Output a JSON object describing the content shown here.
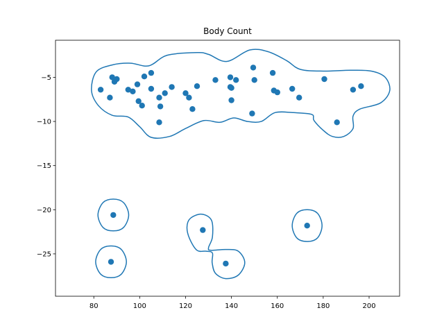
{
  "chart_data": {
    "type": "scatter",
    "title": "Body Count",
    "xlabel": "",
    "ylabel": "",
    "xlim": [
      63.3,
      213.3
    ],
    "ylim": [
      -29.8,
      -0.8
    ],
    "xticks": [
      80,
      100,
      120,
      140,
      160,
      180,
      200
    ],
    "yticks": [
      -5,
      -10,
      -15,
      -20,
      -25
    ],
    "grid": false,
    "colors": {
      "marker": "#1f77b4",
      "contour": "#1f77b4"
    },
    "points": [
      {
        "x": 83.0,
        "y": -6.4
      },
      {
        "x": 87.0,
        "y": -7.3
      },
      {
        "x": 88.0,
        "y": -5.0
      },
      {
        "x": 89.0,
        "y": -5.5
      },
      {
        "x": 90.0,
        "y": -5.2
      },
      {
        "x": 95.0,
        "y": -6.4
      },
      {
        "x": 97.0,
        "y": -6.6
      },
      {
        "x": 99.0,
        "y": -5.8
      },
      {
        "x": 99.5,
        "y": -7.7
      },
      {
        "x": 101.0,
        "y": -8.2
      },
      {
        "x": 102.0,
        "y": -4.9
      },
      {
        "x": 105.0,
        "y": -4.5
      },
      {
        "x": 105.0,
        "y": -6.3
      },
      {
        "x": 108.5,
        "y": -7.3
      },
      {
        "x": 108.5,
        "y": -10.1
      },
      {
        "x": 109.0,
        "y": -8.3
      },
      {
        "x": 111.0,
        "y": -6.8
      },
      {
        "x": 114.0,
        "y": -6.1
      },
      {
        "x": 120.0,
        "y": -6.8
      },
      {
        "x": 121.5,
        "y": -7.3
      },
      {
        "x": 123.0,
        "y": -8.6
      },
      {
        "x": 125.0,
        "y": -6.0
      },
      {
        "x": 133.0,
        "y": -5.3
      },
      {
        "x": 139.5,
        "y": -5.0
      },
      {
        "x": 139.5,
        "y": -6.1
      },
      {
        "x": 140.0,
        "y": -6.2
      },
      {
        "x": 140.0,
        "y": -7.6
      },
      {
        "x": 142.0,
        "y": -5.3
      },
      {
        "x": 149.0,
        "y": -9.1
      },
      {
        "x": 149.5,
        "y": -3.9
      },
      {
        "x": 150.0,
        "y": -5.3
      },
      {
        "x": 158.0,
        "y": -4.5
      },
      {
        "x": 158.5,
        "y": -6.5
      },
      {
        "x": 160.0,
        "y": -6.7
      },
      {
        "x": 166.5,
        "y": -6.3
      },
      {
        "x": 169.5,
        "y": -7.3
      },
      {
        "x": 180.5,
        "y": -5.2
      },
      {
        "x": 186.0,
        "y": -10.1
      },
      {
        "x": 193.0,
        "y": -6.4
      },
      {
        "x": 196.5,
        "y": -6.0
      },
      {
        "x": 88.5,
        "y": -20.6
      },
      {
        "x": 87.5,
        "y": -25.9
      },
      {
        "x": 127.5,
        "y": -22.3
      },
      {
        "x": 137.5,
        "y": -26.1
      },
      {
        "x": 173.0,
        "y": -21.8
      }
    ],
    "contours": [
      [
        [
          104,
          -3.7
        ],
        [
          112,
          -2.5
        ],
        [
          125,
          -2.2
        ],
        [
          130,
          -2.4
        ],
        [
          138,
          -3.2
        ],
        [
          148,
          -1.9
        ],
        [
          156,
          -2.1
        ],
        [
          164,
          -3.1
        ],
        [
          170,
          -4.1
        ],
        [
          180,
          -4.3
        ],
        [
          192,
          -4.2
        ],
        [
          201,
          -4.3
        ],
        [
          207,
          -5.0
        ],
        [
          209,
          -6.5
        ],
        [
          205,
          -7.9
        ],
        [
          196,
          -8.6
        ],
        [
          193,
          -9.4
        ],
        [
          193,
          -10.8
        ],
        [
          189,
          -11.7
        ],
        [
          184,
          -11.7
        ],
        [
          180,
          -11.0
        ],
        [
          176,
          -9.9
        ],
        [
          175,
          -9.2
        ],
        [
          167,
          -9.0
        ],
        [
          159,
          -9.0
        ],
        [
          153,
          -10.0
        ],
        [
          147,
          -10.0
        ],
        [
          141,
          -9.6
        ],
        [
          135,
          -10.1
        ],
        [
          128,
          -9.9
        ],
        [
          120,
          -10.8
        ],
        [
          113,
          -11.7
        ],
        [
          105,
          -11.8
        ],
        [
          100,
          -10.6
        ],
        [
          95,
          -9.5
        ],
        [
          88,
          -9.3
        ],
        [
          82,
          -8.2
        ],
        [
          79,
          -6.5
        ],
        [
          81,
          -4.4
        ],
        [
          88,
          -3.6
        ],
        [
          96,
          -3.4
        ],
        [
          104,
          -3.7
        ]
      ],
      [
        [
          88.5,
          -18.8
        ],
        [
          93,
          -19.2
        ],
        [
          95.2,
          -20.6
        ],
        [
          93,
          -22.0
        ],
        [
          88.5,
          -22.4
        ],
        [
          84,
          -22.0
        ],
        [
          81.8,
          -20.6
        ],
        [
          84,
          -19.2
        ],
        [
          88.5,
          -18.8
        ]
      ],
      [
        [
          87.5,
          -24.1
        ],
        [
          92,
          -24.5
        ],
        [
          94.2,
          -25.9
        ],
        [
          92,
          -27.3
        ],
        [
          87.5,
          -27.7
        ],
        [
          83,
          -27.3
        ],
        [
          80.8,
          -25.9
        ],
        [
          83,
          -24.5
        ],
        [
          87.5,
          -24.1
        ]
      ],
      [
        [
          173,
          -20.0
        ],
        [
          177.5,
          -20.4
        ],
        [
          179.5,
          -21.8
        ],
        [
          177.5,
          -23.2
        ],
        [
          173,
          -23.6
        ],
        [
          168.5,
          -23.2
        ],
        [
          166.5,
          -21.8
        ],
        [
          168.5,
          -20.4
        ],
        [
          173,
          -20.0
        ]
      ],
      [
        [
          122,
          -21.0
        ],
        [
          127,
          -20.5
        ],
        [
          131.3,
          -21.2
        ],
        [
          131.7,
          -23.1
        ],
        [
          130.0,
          -24.3
        ],
        [
          131,
          -24.6
        ],
        [
          137.5,
          -24.5
        ],
        [
          143,
          -24.7
        ],
        [
          145.8,
          -26.0
        ],
        [
          143,
          -27.4
        ],
        [
          137.5,
          -27.8
        ],
        [
          133,
          -27.2
        ],
        [
          131.6,
          -26.0
        ],
        [
          131.7,
          -24.9
        ],
        [
          129.0,
          -24.7
        ],
        [
          125,
          -24.6
        ],
        [
          121.8,
          -23.3
        ],
        [
          120.6,
          -22.0
        ],
        [
          122,
          -21.0
        ]
      ]
    ]
  }
}
